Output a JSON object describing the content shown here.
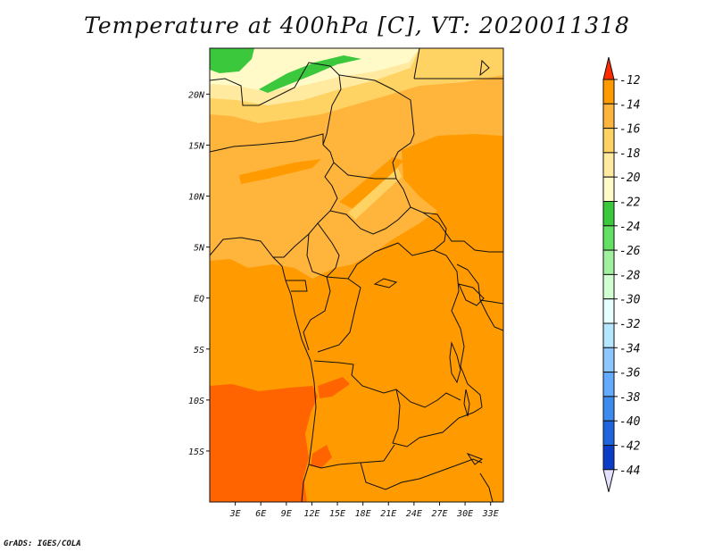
{
  "title": "Temperature at 400hPa [C], VT: 2020011318",
  "credit": "GrADS: IGES/COLA",
  "map": {
    "region": "Central Africa",
    "lon_range": [
      0,
      34.5
    ],
    "lat_range": [
      -20,
      24.5
    ],
    "x_ticks": [
      {
        "label": "3E",
        "lon": 3
      },
      {
        "label": "6E",
        "lon": 6
      },
      {
        "label": "9E",
        "lon": 9
      },
      {
        "label": "12E",
        "lon": 12
      },
      {
        "label": "15E",
        "lon": 15
      },
      {
        "label": "18E",
        "lon": 18
      },
      {
        "label": "21E",
        "lon": 21
      },
      {
        "label": "24E",
        "lon": 24
      },
      {
        "label": "27E",
        "lon": 27
      },
      {
        "label": "30E",
        "lon": 30
      },
      {
        "label": "33E",
        "lon": 33
      }
    ],
    "y_ticks": [
      {
        "label": "20N",
        "lat": 20
      },
      {
        "label": "15N",
        "lat": 15
      },
      {
        "label": "10N",
        "lat": 10
      },
      {
        "label": "5N",
        "lat": 5
      },
      {
        "label": "EQ",
        "lat": 0
      },
      {
        "label": "5S",
        "lat": -5
      },
      {
        "label": "10S",
        "lat": -10
      },
      {
        "label": "15S",
        "lat": -15
      }
    ]
  },
  "colorbar": {
    "levels": [
      "-12",
      "-14",
      "-16",
      "-18",
      "-20",
      "-22",
      "-24",
      "-26",
      "-28",
      "-30",
      "-32",
      "-34",
      "-36",
      "-38",
      "-40",
      "-42",
      "-44"
    ],
    "colors": [
      "#ff6400",
      "#ff9b00",
      "#ffb43c",
      "#ffd264",
      "#ffeaa0",
      "#fffac8",
      "#3cc83c",
      "#64e164",
      "#a0f0a0",
      "#d2ffd2",
      "#e6ffff",
      "#b4e6ff",
      "#8cc8ff",
      "#64aaff",
      "#3c8cf0",
      "#1e64dc",
      "#0a3cc8",
      "#000064"
    ],
    "top_arrow_color": "#ff2a00",
    "bottom_arrow_color": "#e1e1ff"
  }
}
